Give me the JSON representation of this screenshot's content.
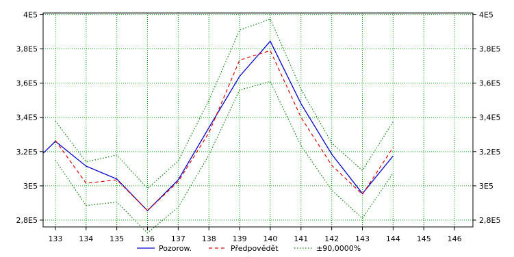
{
  "chart_data": {
    "type": "line",
    "x": [
      132.6,
      133,
      134,
      135,
      136,
      137,
      138,
      139,
      140,
      141,
      142,
      143,
      144
    ],
    "x_ticks": [
      133,
      134,
      135,
      136,
      137,
      138,
      139,
      140,
      141,
      142,
      143,
      144,
      145,
      146
    ],
    "x_tick_labels": [
      "133",
      "134",
      "135",
      "136",
      "137",
      "138",
      "139",
      "140",
      "141",
      "142",
      "143",
      "144",
      "145",
      "146"
    ],
    "xlim": [
      132.6,
      146.6
    ],
    "ylim": [
      276000,
      401000
    ],
    "y_ticks": [
      280000,
      300000,
      320000,
      340000,
      360000,
      380000,
      400000
    ],
    "y_tick_labels": [
      "2,8E5",
      "3E5",
      "3,2E5",
      "3,4E5",
      "3,6E5",
      "3,8E5",
      "4E5"
    ],
    "grid": true,
    "grid_color": "#00a000",
    "legend_position": "bottom-center",
    "series": [
      {
        "name": "Pozorow.",
        "style": "solid",
        "color": "#0000cc",
        "values": [
          319000,
          326000,
          311500,
          304000,
          285500,
          303500,
          334000,
          364000,
          384500,
          348000,
          318500,
          295500,
          317500
        ]
      },
      {
        "name": "Předpovědět",
        "style": "dashed",
        "color": "#e00000",
        "values": [
          null,
          326500,
          301500,
          303500,
          285500,
          302500,
          331000,
          373500,
          379000,
          340000,
          312000,
          295000,
          322500
        ]
      },
      {
        "name": "±90,0000%",
        "style": "dotted",
        "color": "#008000",
        "values": [
          null,
          338000,
          314000,
          318000,
          298500,
          314500,
          350000,
          391000,
          397500,
          356500,
          325000,
          309000,
          337500
        ]
      },
      {
        "name": "",
        "style": "dotted",
        "color": "#008000",
        "values": [
          null,
          315000,
          288500,
          290500,
          272500,
          287500,
          318000,
          356000,
          361000,
          323500,
          297500,
          281000,
          307500
        ]
      }
    ]
  }
}
